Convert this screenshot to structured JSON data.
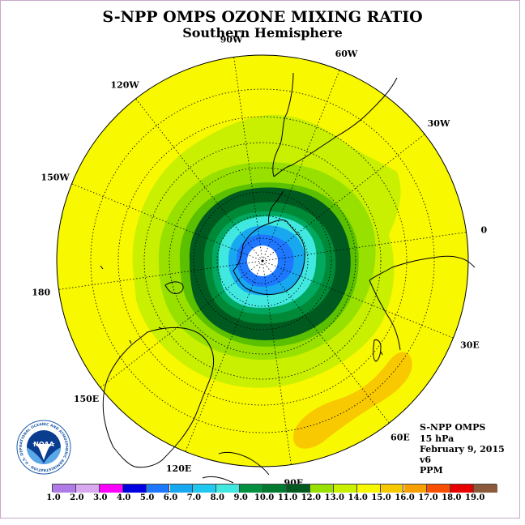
{
  "title": "S-NPP OMPS OZONE MIXING RATIO",
  "subtitle": "Southern Hemisphere",
  "meridian_labels": [
    "90W",
    "60W",
    "30W",
    "0",
    "30E",
    "60E",
    "90E",
    "120E",
    "150E",
    "180",
    "150W",
    "120W"
  ],
  "info": {
    "instrument": "S-NPP OMPS",
    "level": "15 hPa",
    "date": "February 9, 2015",
    "version": "v6",
    "units": "PPM"
  },
  "logo": {
    "text": "NOAA",
    "ring_text": "NATIONAL OCEANIC AND ATMOSPHERIC ADMINISTRATION · U.S. DEPARTMENT OF COMMERCE"
  },
  "colorbar": {
    "ticks": [
      "1.0",
      "2.0",
      "3.0",
      "4.0",
      "5.0",
      "6.0",
      "7.0",
      "8.0",
      "9.0",
      "10.0",
      "11.0",
      "12.0",
      "13.0",
      "14.0",
      "15.0",
      "16.0",
      "17.0",
      "18.0",
      "19.0"
    ],
    "colors": [
      "#b07ae8",
      "#d8a8f0",
      "#ff00ff",
      "#0000e0",
      "#1e78ff",
      "#18a8f0",
      "#20c8f0",
      "#40e8e0",
      "#009040",
      "#007a30",
      "#005a20",
      "#98e000",
      "#c8f000",
      "#f8f800",
      "#f8c800",
      "#f8a000",
      "#f85000",
      "#e80000",
      "#8a5a3a"
    ]
  },
  "colors": {
    "background_field": "#f8f800",
    "ozone_hole_center": "#ffffff"
  }
}
